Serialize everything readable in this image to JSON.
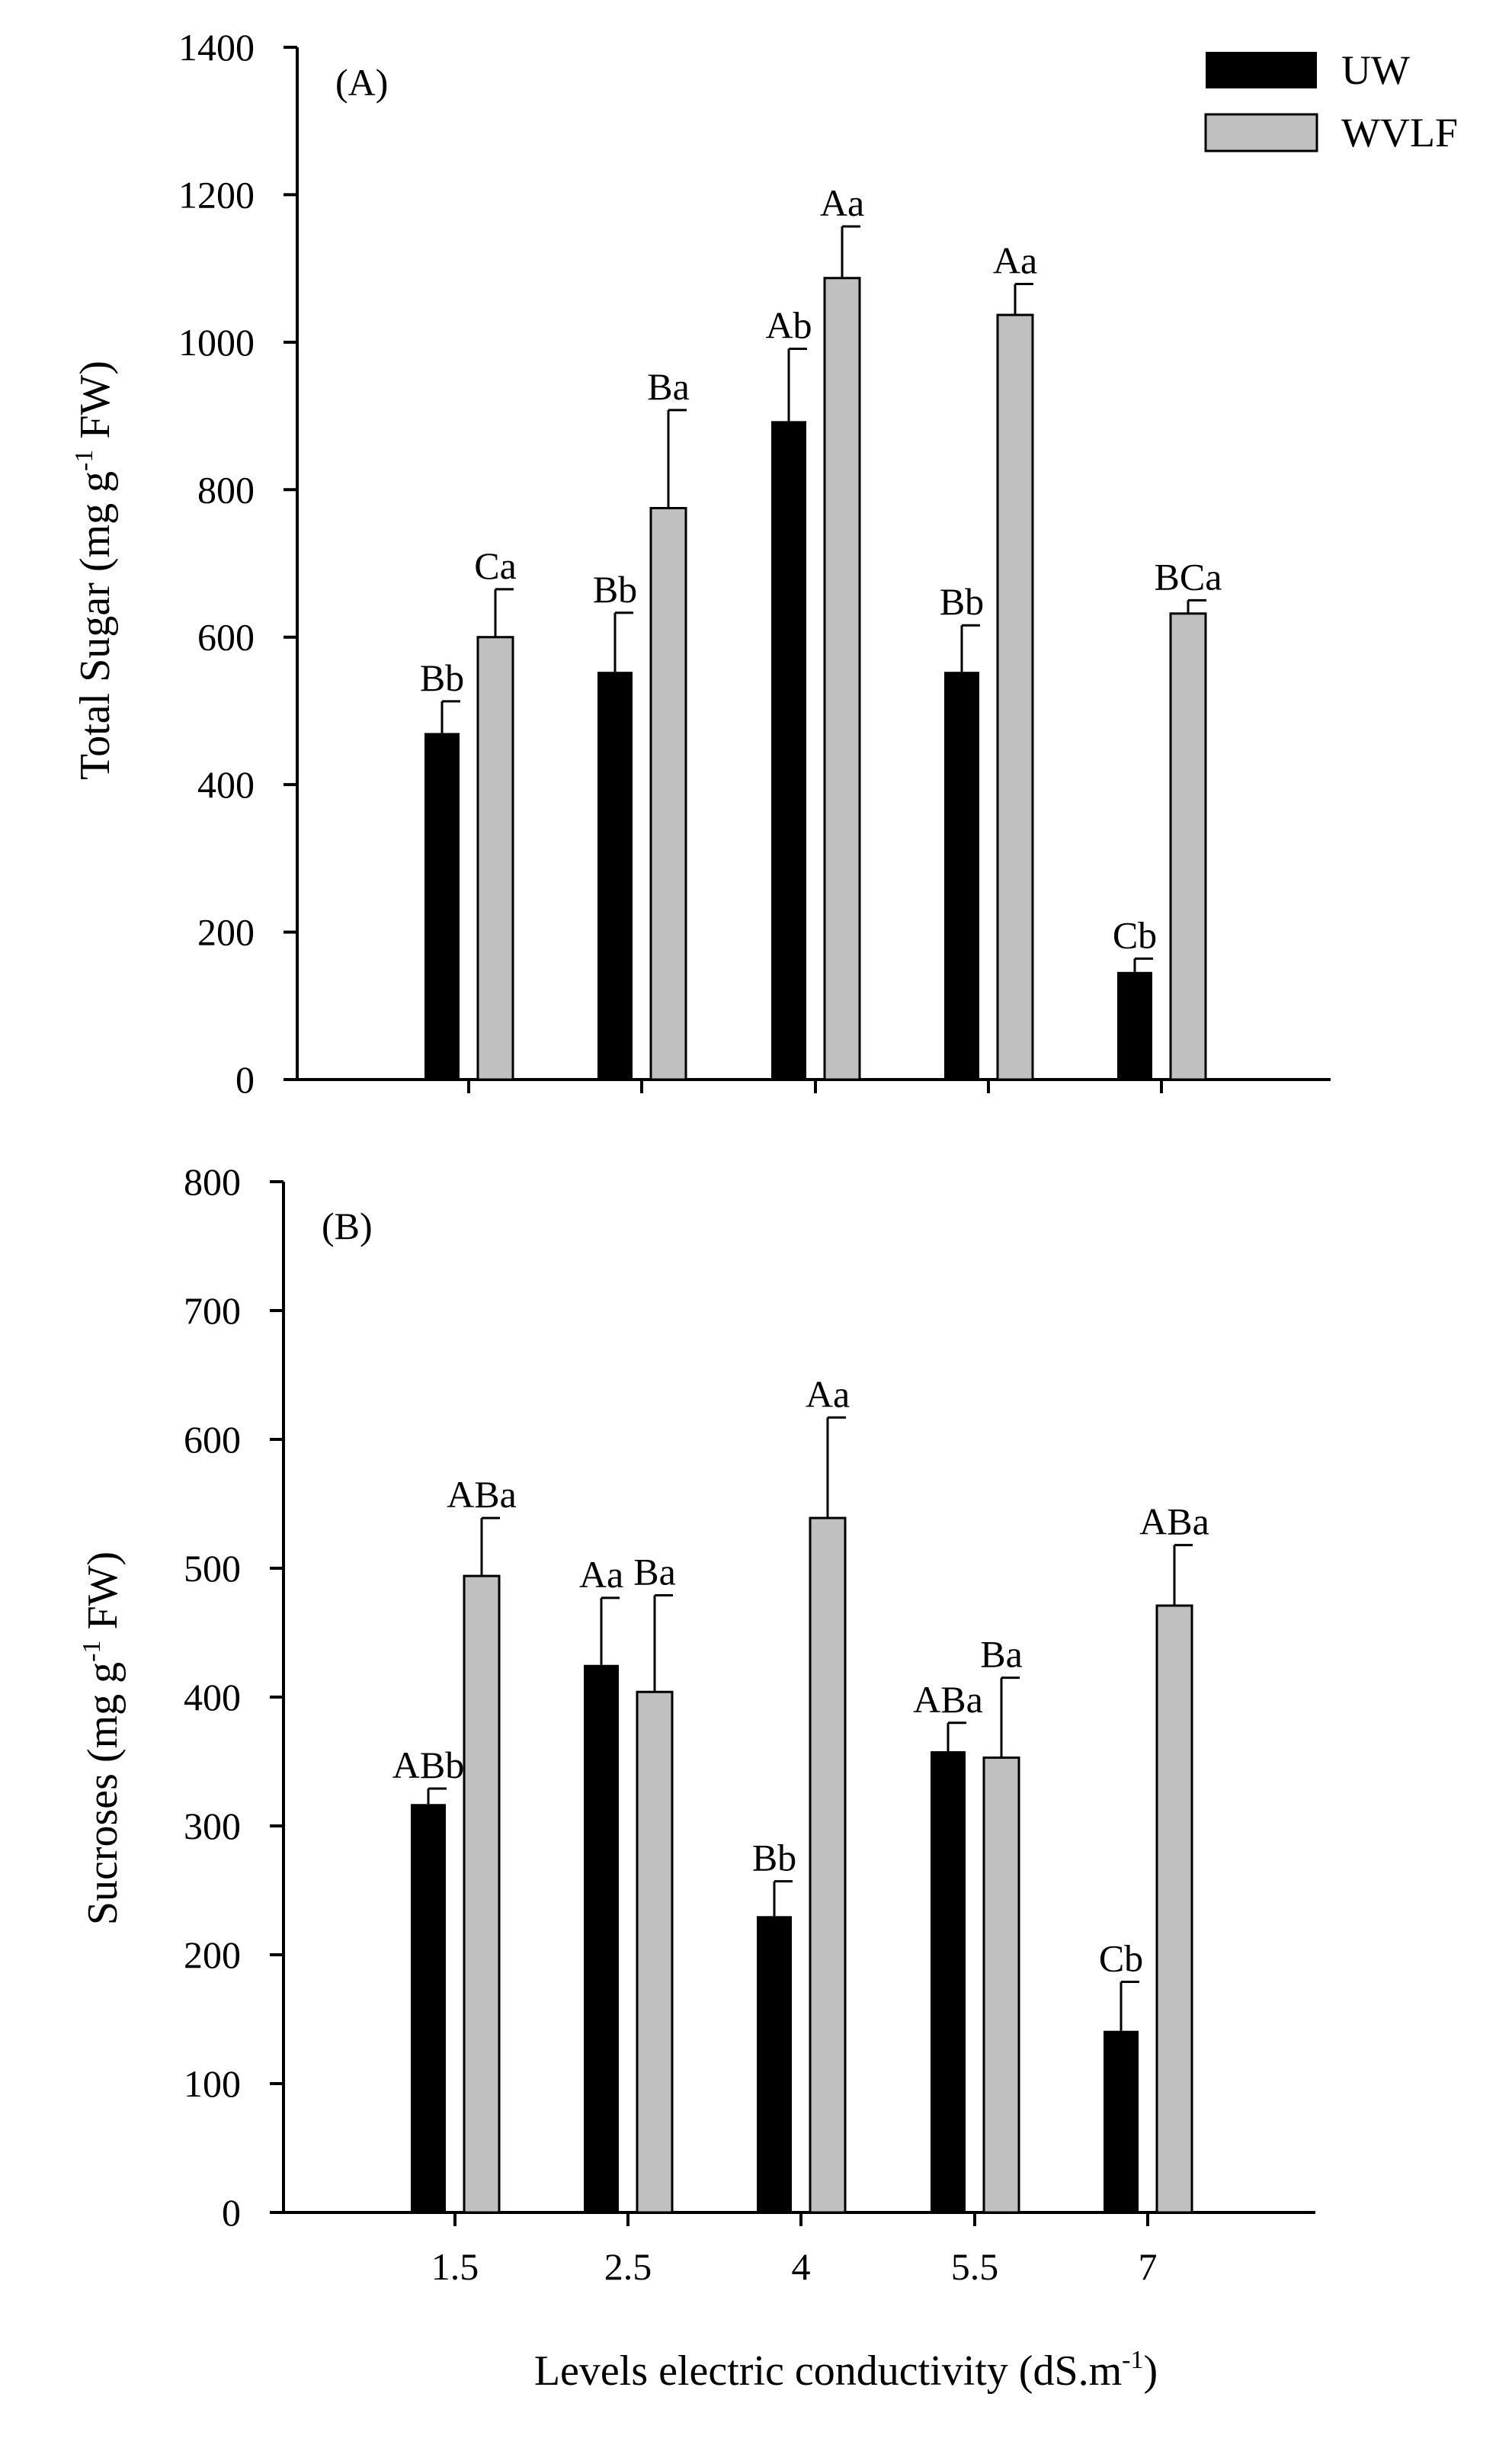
{
  "figure": {
    "xlabel": "Levels electric conductivity (dS.m",
    "xlabel_sup": "-1",
    "xlabel_close": ")"
  },
  "legend": {
    "items": [
      {
        "label": "UW",
        "color": "#000000"
      },
      {
        "label": "WVLF",
        "color": "#c0c0c0"
      }
    ]
  },
  "colors": {
    "uw": "#000000",
    "wvlf": "#c0c0c0",
    "axis": "#000000"
  },
  "chart_data": [
    {
      "type": "bar",
      "panel": "(A)",
      "ylabel": "Total Sugar  (mg g",
      "ylabel_sup": "-1",
      "ylabel_tail": " FW)",
      "categories": [
        "1.5",
        "2.5",
        "4",
        "5.5",
        "7"
      ],
      "ylim": [
        0,
        1400
      ],
      "yticks": [
        0,
        200,
        400,
        600,
        800,
        1000,
        1200,
        1400
      ],
      "show_xtick_labels": false,
      "series": [
        {
          "name": "UW",
          "values": [
            470,
            553,
            893,
            553,
            146
          ],
          "errors": [
            43,
            80,
            98,
            63,
            18
          ],
          "labels": [
            "Bb",
            "Bb",
            "Ab",
            "Bb",
            "Cb"
          ]
        },
        {
          "name": "WVLF",
          "values": [
            600,
            775,
            1087,
            1037,
            632
          ],
          "errors": [
            65,
            133,
            70,
            42,
            18
          ],
          "labels": [
            "Ca",
            "Ba",
            "Aa",
            "Aa",
            "BCa"
          ]
        }
      ]
    },
    {
      "type": "bar",
      "panel": "(B)",
      "ylabel": "Sucroses (mg g",
      "ylabel_sup": "-1",
      "ylabel_tail": " FW)",
      "categories": [
        "1.5",
        "2.5",
        "4",
        "5.5",
        "7"
      ],
      "ylim": [
        0,
        800
      ],
      "yticks": [
        0,
        100,
        200,
        300,
        400,
        500,
        600,
        700,
        800
      ],
      "show_xtick_labels": true,
      "series": [
        {
          "name": "UW",
          "values": [
            317,
            425,
            230,
            358,
            141
          ],
          "errors": [
            12,
            52,
            27,
            22,
            38
          ],
          "labels": [
            "ABb",
            "Aa",
            "Bb",
            "ABa",
            "Cb"
          ]
        },
        {
          "name": "WVLF",
          "values": [
            494,
            404,
            539,
            353,
            471
          ],
          "errors": [
            45,
            75,
            78,
            62,
            47
          ],
          "labels": [
            "ABa",
            "Ba",
            "Aa",
            "Ba",
            "ABa"
          ]
        }
      ]
    }
  ]
}
